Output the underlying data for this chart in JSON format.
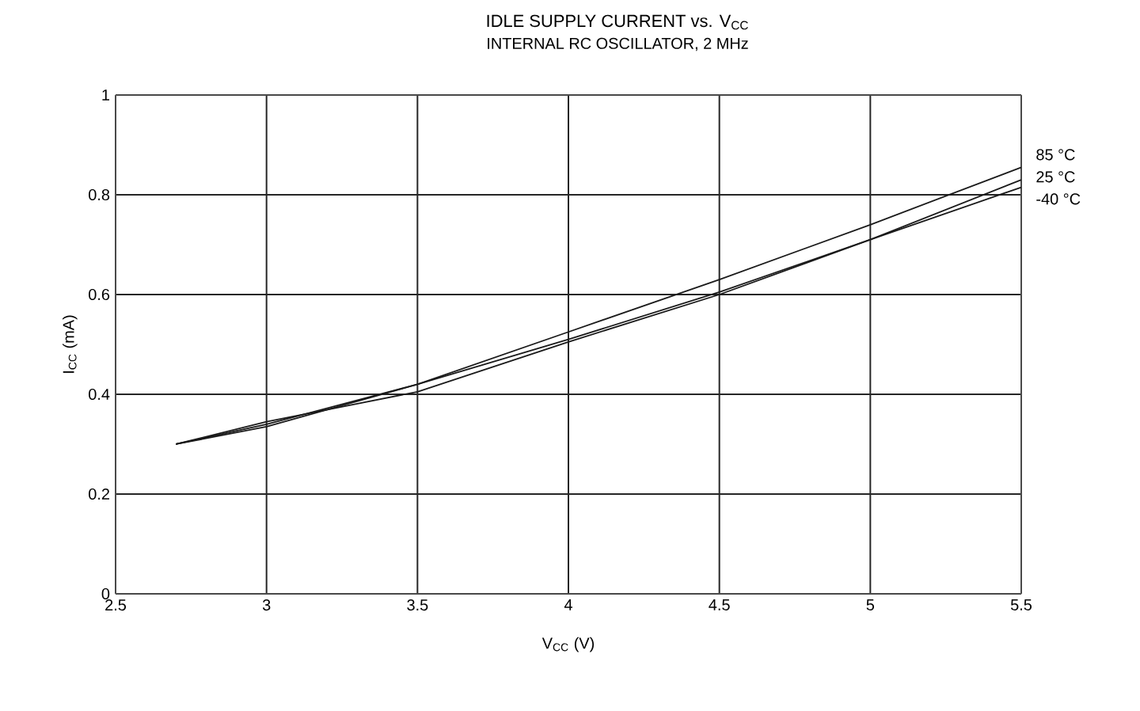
{
  "chart_data": {
    "type": "line",
    "title": "IDLE SUPPLY CURRENT vs. V$_{CC}$",
    "subtitle": "INTERNAL RC OSCILLATOR, 2 MHz",
    "xlabel": "V$_{CC}$ (V)",
    "ylabel": "I$_{CC}$ (mA)",
    "x": [
      2.7,
      3.0,
      3.5,
      4.0,
      4.5,
      5.0,
      5.5
    ],
    "series": [
      {
        "name": "85 °C",
        "color": "#1a1a1a",
        "values": [
          0.3,
          0.34,
          0.42,
          0.525,
          0.63,
          0.74,
          0.855
        ]
      },
      {
        "name": "25 °C",
        "color": "#1a1a1a",
        "values": [
          0.3,
          0.335,
          0.42,
          0.51,
          0.605,
          0.71,
          0.83
        ]
      },
      {
        "name": "-40 °C",
        "color": "#1a1a1a",
        "values": [
          0.3,
          0.345,
          0.405,
          0.505,
          0.6,
          0.71,
          0.815
        ]
      }
    ],
    "xlim": [
      2.5,
      5.5
    ],
    "ylim": [
      0,
      1
    ],
    "xticks": [
      2.5,
      3,
      3.5,
      4,
      4.5,
      5,
      5.5
    ],
    "yticks": [
      0,
      0.2,
      0.4,
      0.6,
      0.8,
      1
    ],
    "grid": true
  }
}
